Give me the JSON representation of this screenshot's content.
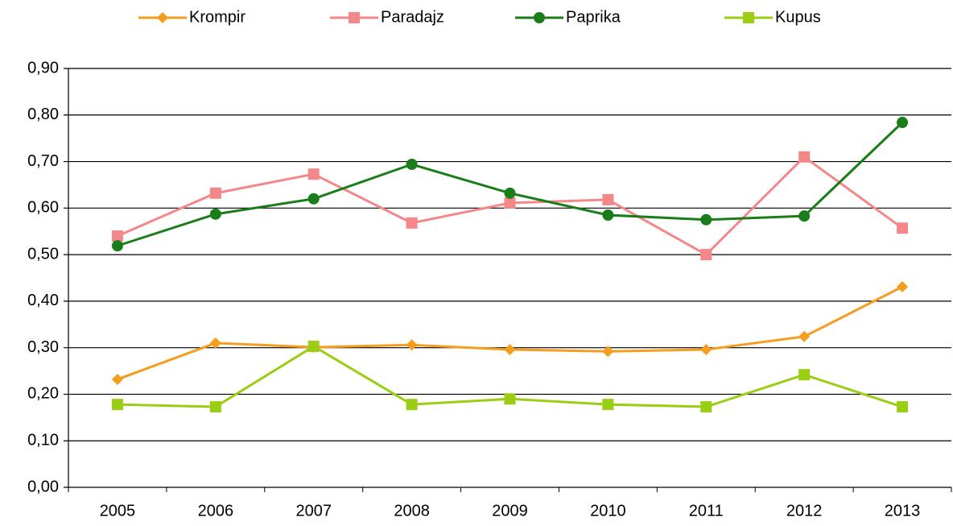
{
  "chart_data": {
    "type": "line",
    "categories": [
      "2005",
      "2006",
      "2007",
      "2008",
      "2009",
      "2010",
      "2011",
      "2012",
      "2013"
    ],
    "series": [
      {
        "name": "Krompir",
        "color": "#f59d1e",
        "marker": "diamond",
        "values": [
          0.232,
          0.31,
          0.301,
          0.306,
          0.296,
          0.292,
          0.296,
          0.324,
          0.431
        ]
      },
      {
        "name": "Paradajz",
        "color": "#f4878a",
        "marker": "square",
        "values": [
          0.54,
          0.632,
          0.673,
          0.568,
          0.611,
          0.618,
          0.5,
          0.71,
          0.557
        ]
      },
      {
        "name": "Paprika",
        "color": "#1a7d1a",
        "marker": "circle",
        "values": [
          0.519,
          0.587,
          0.62,
          0.694,
          0.632,
          0.585,
          0.575,
          0.583,
          0.784
        ]
      },
      {
        "name": "Kupus",
        "color": "#9acd14",
        "marker": "square",
        "values": [
          0.178,
          0.173,
          0.303,
          0.178,
          0.19,
          0.178,
          0.173,
          0.242,
          0.173
        ]
      }
    ],
    "ylim": [
      0,
      0.9
    ],
    "yticks": [
      {
        "value": 0,
        "label": "0,00"
      },
      {
        "value": 0.1,
        "label": "0,10"
      },
      {
        "value": 0.2,
        "label": "0,20"
      },
      {
        "value": 0.3,
        "label": "0,30"
      },
      {
        "value": 0.4,
        "label": "0,40"
      },
      {
        "value": 0.5,
        "label": "0,50"
      },
      {
        "value": 0.6,
        "label": "0,60"
      },
      {
        "value": 0.7,
        "label": "0,70"
      },
      {
        "value": 0.8,
        "label": "0,80"
      },
      {
        "value": 0.9,
        "label": "0,90"
      }
    ],
    "grid": true,
    "legend": "top"
  }
}
